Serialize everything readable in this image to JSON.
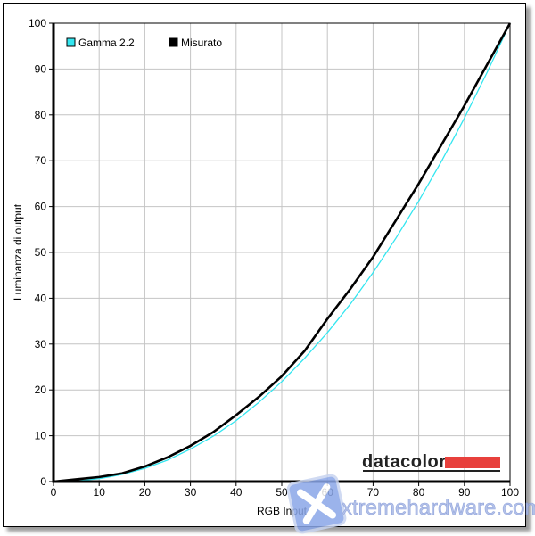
{
  "chart_data": {
    "type": "line",
    "title": "",
    "xlabel": "RGB Input",
    "ylabel": "Luminanza di output",
    "xlim": [
      0,
      100
    ],
    "ylim": [
      0,
      100
    ],
    "xticks": [
      "0",
      "10",
      "20",
      "30",
      "40",
      "50",
      "60",
      "70",
      "80",
      "90",
      "100"
    ],
    "yticks": [
      "0",
      "10",
      "20",
      "30",
      "40",
      "50",
      "60",
      "70",
      "80",
      "90",
      "100"
    ],
    "grid": true,
    "legend_position": "top-left",
    "x": [
      0,
      5,
      10,
      15,
      20,
      25,
      30,
      35,
      40,
      45,
      50,
      55,
      60,
      65,
      70,
      75,
      80,
      85,
      90,
      95,
      100
    ],
    "series": [
      {
        "name": "Gamma 2.2",
        "color": "#33e6f0",
        "values": [
          0,
          0.14,
          0.63,
          1.55,
          2.9,
          4.7,
          7.1,
          9.9,
          13.3,
          17.3,
          21.8,
          26.9,
          32.5,
          38.7,
          45.6,
          53.1,
          61.2,
          69.9,
          79.3,
          89.3,
          100
        ]
      },
      {
        "name": "Misurato",
        "color": "#000000",
        "values": [
          0,
          0.5,
          1.0,
          1.8,
          3.3,
          5.3,
          7.8,
          10.8,
          14.5,
          18.5,
          23,
          28.5,
          35.5,
          42,
          49,
          57,
          65,
          73.5,
          82,
          91,
          100
        ]
      }
    ]
  },
  "logo": {
    "text": "datacolor",
    "bar_color": "#e8403c"
  },
  "watermark": {
    "text": "xtremehardware.com"
  }
}
